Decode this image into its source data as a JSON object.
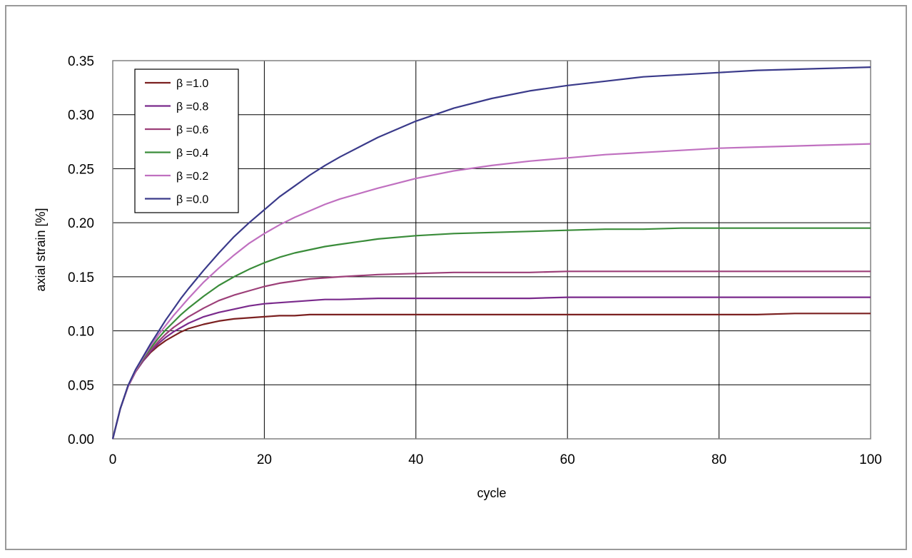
{
  "chart_data": {
    "type": "line",
    "title": "",
    "xlabel": "cycle",
    "ylabel": "axial strain [%]",
    "xlim": [
      0,
      100
    ],
    "ylim": [
      0,
      0.35
    ],
    "xticks": [
      0,
      20,
      40,
      60,
      80,
      100
    ],
    "yticks": [
      0.0,
      0.05,
      0.1,
      0.15,
      0.2,
      0.25,
      0.3,
      0.35
    ],
    "x_tick_labels": [
      "0",
      "20",
      "40",
      "60",
      "80",
      "100"
    ],
    "y_tick_labels": [
      "0.00",
      "0.05",
      "0.10",
      "0.15",
      "0.20",
      "0.25",
      "0.30",
      "0.35"
    ],
    "grid": true,
    "legend_position": "top-left",
    "x": [
      0,
      1,
      2,
      3,
      4,
      5,
      6,
      7,
      8,
      9,
      10,
      12,
      14,
      16,
      18,
      20,
      22,
      24,
      26,
      28,
      30,
      35,
      40,
      45,
      50,
      55,
      60,
      65,
      70,
      75,
      80,
      85,
      90,
      95,
      100
    ],
    "series": [
      {
        "name": "β =1.0",
        "color": "#7b2020",
        "values": [
          0,
          0.028,
          0.048,
          0.062,
          0.072,
          0.08,
          0.086,
          0.091,
          0.095,
          0.099,
          0.102,
          0.106,
          0.109,
          0.111,
          0.112,
          0.113,
          0.114,
          0.114,
          0.115,
          0.115,
          0.115,
          0.115,
          0.115,
          0.115,
          0.115,
          0.115,
          0.115,
          0.115,
          0.115,
          0.115,
          0.115,
          0.115,
          0.116,
          0.116,
          0.116
        ]
      },
      {
        "name": "β =0.8",
        "color": "#7a2a8c",
        "values": [
          0,
          0.028,
          0.048,
          0.062,
          0.072,
          0.081,
          0.088,
          0.094,
          0.099,
          0.103,
          0.107,
          0.113,
          0.117,
          0.12,
          0.123,
          0.125,
          0.126,
          0.127,
          0.128,
          0.129,
          0.129,
          0.13,
          0.13,
          0.13,
          0.13,
          0.13,
          0.131,
          0.131,
          0.131,
          0.131,
          0.131,
          0.131,
          0.131,
          0.131,
          0.131
        ]
      },
      {
        "name": "β =0.6",
        "color": "#9c3f78",
        "values": [
          0,
          0.028,
          0.048,
          0.062,
          0.073,
          0.082,
          0.09,
          0.097,
          0.103,
          0.108,
          0.113,
          0.121,
          0.128,
          0.133,
          0.137,
          0.141,
          0.144,
          0.146,
          0.148,
          0.149,
          0.15,
          0.152,
          0.153,
          0.154,
          0.154,
          0.154,
          0.155,
          0.155,
          0.155,
          0.155,
          0.155,
          0.155,
          0.155,
          0.155,
          0.155
        ]
      },
      {
        "name": "β =0.4",
        "color": "#3a8c3a",
        "values": [
          0,
          0.028,
          0.048,
          0.063,
          0.074,
          0.084,
          0.093,
          0.101,
          0.108,
          0.115,
          0.121,
          0.132,
          0.142,
          0.15,
          0.157,
          0.163,
          0.168,
          0.172,
          0.175,
          0.178,
          0.18,
          0.185,
          0.188,
          0.19,
          0.191,
          0.192,
          0.193,
          0.194,
          0.194,
          0.195,
          0.195,
          0.195,
          0.195,
          0.195,
          0.195
        ]
      },
      {
        "name": "β =0.2",
        "color": "#c070c0",
        "values": [
          0,
          0.028,
          0.048,
          0.063,
          0.075,
          0.086,
          0.096,
          0.105,
          0.114,
          0.122,
          0.13,
          0.145,
          0.158,
          0.17,
          0.181,
          0.19,
          0.198,
          0.205,
          0.211,
          0.217,
          0.222,
          0.232,
          0.241,
          0.248,
          0.253,
          0.257,
          0.26,
          0.263,
          0.265,
          0.267,
          0.269,
          0.27,
          0.271,
          0.272,
          0.273
        ]
      },
      {
        "name": "β =0.0",
        "color": "#3a3a8a",
        "values": [
          0,
          0.028,
          0.049,
          0.064,
          0.076,
          0.088,
          0.099,
          0.11,
          0.12,
          0.13,
          0.139,
          0.156,
          0.172,
          0.187,
          0.2,
          0.212,
          0.224,
          0.234,
          0.244,
          0.253,
          0.261,
          0.279,
          0.294,
          0.306,
          0.315,
          0.322,
          0.327,
          0.331,
          0.335,
          0.337,
          0.339,
          0.341,
          0.342,
          0.343,
          0.344
        ]
      }
    ]
  }
}
